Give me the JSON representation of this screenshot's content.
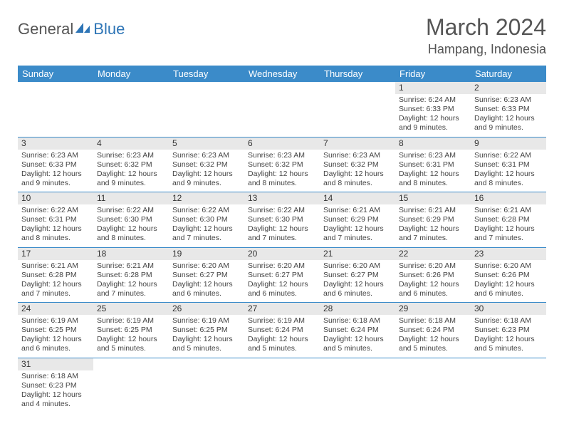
{
  "logo": {
    "text1": "General",
    "text2": "Blue"
  },
  "title": "March 2024",
  "location": "Hampang, Indonesia",
  "columns": [
    "Sunday",
    "Monday",
    "Tuesday",
    "Wednesday",
    "Thursday",
    "Friday",
    "Saturday"
  ],
  "colors": {
    "header_bg": "#3b8bc9",
    "header_text": "#ffffff",
    "daynum_bg": "#e8e8e8",
    "row_border": "#3b8bc9",
    "logo_accent": "#2e75b6",
    "text": "#444444",
    "background": "#ffffff"
  },
  "typography": {
    "title_fontsize": 32,
    "location_fontsize": 18,
    "header_fontsize": 13,
    "cell_fontsize": 10.5,
    "daynum_fontsize": 12
  },
  "weeks": [
    [
      {
        "n": "",
        "sr": "",
        "ss": "",
        "dl": ""
      },
      {
        "n": "",
        "sr": "",
        "ss": "",
        "dl": ""
      },
      {
        "n": "",
        "sr": "",
        "ss": "",
        "dl": ""
      },
      {
        "n": "",
        "sr": "",
        "ss": "",
        "dl": ""
      },
      {
        "n": "",
        "sr": "",
        "ss": "",
        "dl": ""
      },
      {
        "n": "1",
        "sr": "Sunrise: 6:24 AM",
        "ss": "Sunset: 6:33 PM",
        "dl": "Daylight: 12 hours and 9 minutes."
      },
      {
        "n": "2",
        "sr": "Sunrise: 6:23 AM",
        "ss": "Sunset: 6:33 PM",
        "dl": "Daylight: 12 hours and 9 minutes."
      }
    ],
    [
      {
        "n": "3",
        "sr": "Sunrise: 6:23 AM",
        "ss": "Sunset: 6:33 PM",
        "dl": "Daylight: 12 hours and 9 minutes."
      },
      {
        "n": "4",
        "sr": "Sunrise: 6:23 AM",
        "ss": "Sunset: 6:32 PM",
        "dl": "Daylight: 12 hours and 9 minutes."
      },
      {
        "n": "5",
        "sr": "Sunrise: 6:23 AM",
        "ss": "Sunset: 6:32 PM",
        "dl": "Daylight: 12 hours and 9 minutes."
      },
      {
        "n": "6",
        "sr": "Sunrise: 6:23 AM",
        "ss": "Sunset: 6:32 PM",
        "dl": "Daylight: 12 hours and 8 minutes."
      },
      {
        "n": "7",
        "sr": "Sunrise: 6:23 AM",
        "ss": "Sunset: 6:32 PM",
        "dl": "Daylight: 12 hours and 8 minutes."
      },
      {
        "n": "8",
        "sr": "Sunrise: 6:23 AM",
        "ss": "Sunset: 6:31 PM",
        "dl": "Daylight: 12 hours and 8 minutes."
      },
      {
        "n": "9",
        "sr": "Sunrise: 6:22 AM",
        "ss": "Sunset: 6:31 PM",
        "dl": "Daylight: 12 hours and 8 minutes."
      }
    ],
    [
      {
        "n": "10",
        "sr": "Sunrise: 6:22 AM",
        "ss": "Sunset: 6:31 PM",
        "dl": "Daylight: 12 hours and 8 minutes."
      },
      {
        "n": "11",
        "sr": "Sunrise: 6:22 AM",
        "ss": "Sunset: 6:30 PM",
        "dl": "Daylight: 12 hours and 8 minutes."
      },
      {
        "n": "12",
        "sr": "Sunrise: 6:22 AM",
        "ss": "Sunset: 6:30 PM",
        "dl": "Daylight: 12 hours and 7 minutes."
      },
      {
        "n": "13",
        "sr": "Sunrise: 6:22 AM",
        "ss": "Sunset: 6:30 PM",
        "dl": "Daylight: 12 hours and 7 minutes."
      },
      {
        "n": "14",
        "sr": "Sunrise: 6:21 AM",
        "ss": "Sunset: 6:29 PM",
        "dl": "Daylight: 12 hours and 7 minutes."
      },
      {
        "n": "15",
        "sr": "Sunrise: 6:21 AM",
        "ss": "Sunset: 6:29 PM",
        "dl": "Daylight: 12 hours and 7 minutes."
      },
      {
        "n": "16",
        "sr": "Sunrise: 6:21 AM",
        "ss": "Sunset: 6:28 PM",
        "dl": "Daylight: 12 hours and 7 minutes."
      }
    ],
    [
      {
        "n": "17",
        "sr": "Sunrise: 6:21 AM",
        "ss": "Sunset: 6:28 PM",
        "dl": "Daylight: 12 hours and 7 minutes."
      },
      {
        "n": "18",
        "sr": "Sunrise: 6:21 AM",
        "ss": "Sunset: 6:28 PM",
        "dl": "Daylight: 12 hours and 7 minutes."
      },
      {
        "n": "19",
        "sr": "Sunrise: 6:20 AM",
        "ss": "Sunset: 6:27 PM",
        "dl": "Daylight: 12 hours and 6 minutes."
      },
      {
        "n": "20",
        "sr": "Sunrise: 6:20 AM",
        "ss": "Sunset: 6:27 PM",
        "dl": "Daylight: 12 hours and 6 minutes."
      },
      {
        "n": "21",
        "sr": "Sunrise: 6:20 AM",
        "ss": "Sunset: 6:27 PM",
        "dl": "Daylight: 12 hours and 6 minutes."
      },
      {
        "n": "22",
        "sr": "Sunrise: 6:20 AM",
        "ss": "Sunset: 6:26 PM",
        "dl": "Daylight: 12 hours and 6 minutes."
      },
      {
        "n": "23",
        "sr": "Sunrise: 6:20 AM",
        "ss": "Sunset: 6:26 PM",
        "dl": "Daylight: 12 hours and 6 minutes."
      }
    ],
    [
      {
        "n": "24",
        "sr": "Sunrise: 6:19 AM",
        "ss": "Sunset: 6:25 PM",
        "dl": "Daylight: 12 hours and 6 minutes."
      },
      {
        "n": "25",
        "sr": "Sunrise: 6:19 AM",
        "ss": "Sunset: 6:25 PM",
        "dl": "Daylight: 12 hours and 5 minutes."
      },
      {
        "n": "26",
        "sr": "Sunrise: 6:19 AM",
        "ss": "Sunset: 6:25 PM",
        "dl": "Daylight: 12 hours and 5 minutes."
      },
      {
        "n": "27",
        "sr": "Sunrise: 6:19 AM",
        "ss": "Sunset: 6:24 PM",
        "dl": "Daylight: 12 hours and 5 minutes."
      },
      {
        "n": "28",
        "sr": "Sunrise: 6:18 AM",
        "ss": "Sunset: 6:24 PM",
        "dl": "Daylight: 12 hours and 5 minutes."
      },
      {
        "n": "29",
        "sr": "Sunrise: 6:18 AM",
        "ss": "Sunset: 6:24 PM",
        "dl": "Daylight: 12 hours and 5 minutes."
      },
      {
        "n": "30",
        "sr": "Sunrise: 6:18 AM",
        "ss": "Sunset: 6:23 PM",
        "dl": "Daylight: 12 hours and 5 minutes."
      }
    ],
    [
      {
        "n": "31",
        "sr": "Sunrise: 6:18 AM",
        "ss": "Sunset: 6:23 PM",
        "dl": "Daylight: 12 hours and 4 minutes."
      },
      {
        "n": "",
        "sr": "",
        "ss": "",
        "dl": ""
      },
      {
        "n": "",
        "sr": "",
        "ss": "",
        "dl": ""
      },
      {
        "n": "",
        "sr": "",
        "ss": "",
        "dl": ""
      },
      {
        "n": "",
        "sr": "",
        "ss": "",
        "dl": ""
      },
      {
        "n": "",
        "sr": "",
        "ss": "",
        "dl": ""
      },
      {
        "n": "",
        "sr": "",
        "ss": "",
        "dl": ""
      }
    ]
  ]
}
